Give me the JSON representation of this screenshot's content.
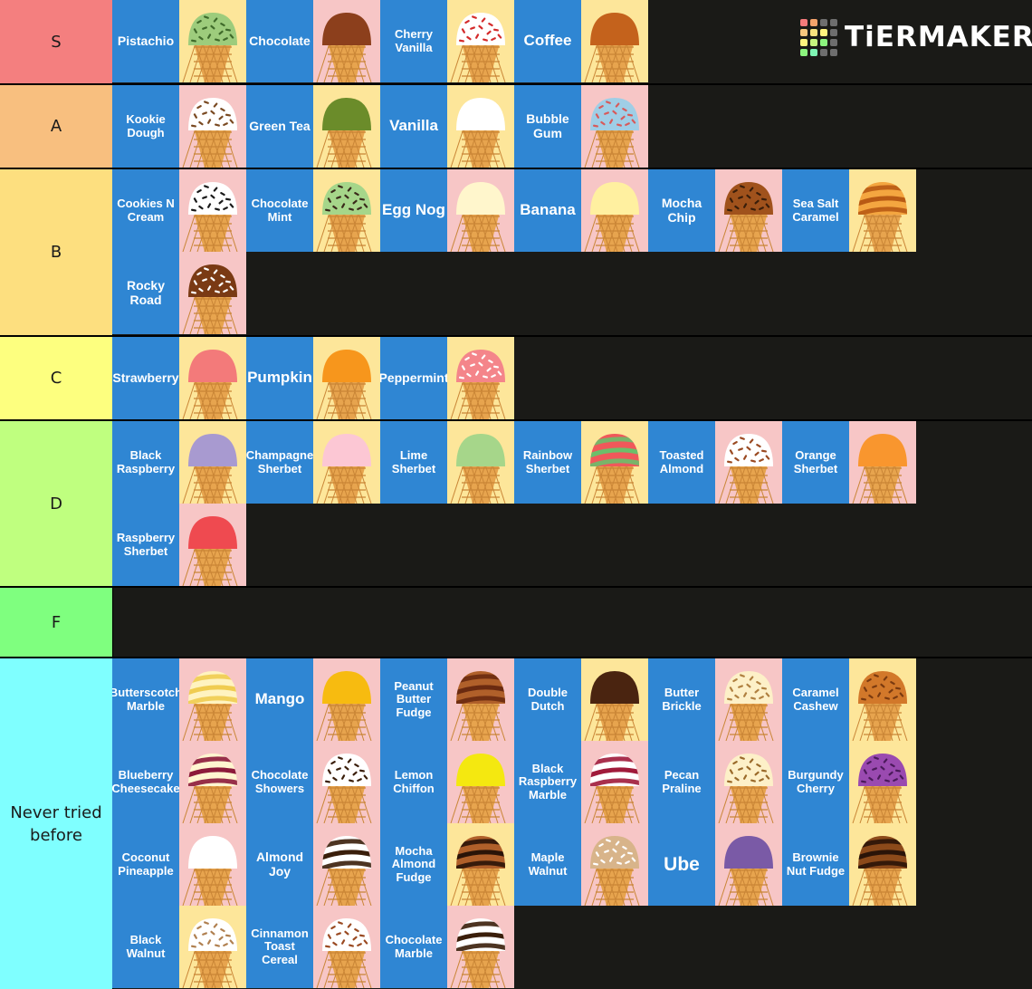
{
  "logo": {
    "text": "TiERMAKER",
    "colors": [
      "#f47b7b",
      "#f4a36b",
      "#6e6e6e",
      "#6e6e6e",
      "#f8c77e",
      "#f8e27e",
      "#fff47e",
      "#6e6e6e",
      "#fff47e",
      "#c6f47e",
      "#8cf47e",
      "#6e6e6e",
      "#8cf47e",
      "#7ef4b3",
      "#6e6e6e",
      "#6e6e6e"
    ]
  },
  "tiers": [
    {
      "label": "S",
      "color": "#f47f7f",
      "items": [
        {
          "name": "Pistachio",
          "bg": "#fde69a",
          "scoop": "#9dcc7c",
          "sprinkles": "#3f6a2a"
        },
        {
          "name": "Chocolate",
          "bg": "#f7c6c6",
          "scoop": "#8c3f1c"
        },
        {
          "name": "Cherry Vanilla",
          "bg": "#fde69a",
          "scoop": "#ffffff",
          "sprinkles": "#d42a2a"
        },
        {
          "name": "Coffee",
          "bg": "#fde69a",
          "scoop": "#c4621c"
        }
      ]
    },
    {
      "label": "A",
      "color": "#f8bf7f",
      "items": [
        {
          "name": "Kookie Dough",
          "bg": "#f7c6c6",
          "scoop": "#ffffff",
          "sprinkles": "#7a4a22"
        },
        {
          "name": "Green Tea",
          "bg": "#fde69a",
          "scoop": "#6b8c2a"
        },
        {
          "name": "Vanilla",
          "bg": "#fde69a",
          "scoop": "#ffffff"
        },
        {
          "name": "Bubble Gum",
          "bg": "#f7c6c6",
          "scoop": "#9fcee6",
          "sprinkles": "#d85a5a"
        }
      ]
    },
    {
      "label": "B",
      "color": "#fddf7f",
      "items": [
        {
          "name": "Cookies N Cream",
          "bg": "#f7c6c6",
          "scoop": "#ffffff",
          "sprinkles": "#1a1a1a"
        },
        {
          "name": "Chocolate Mint",
          "bg": "#fde69a",
          "scoop": "#a6d68a",
          "sprinkles": "#3a2a1a"
        },
        {
          "name": "Egg Nog",
          "bg": "#f7c6c6",
          "scoop": "#fff6cc"
        },
        {
          "name": "Banana",
          "bg": "#f7c6c6",
          "scoop": "#fff0a0"
        },
        {
          "name": "Mocha Chip",
          "bg": "#f7c6c6",
          "scoop": "#a0521c",
          "sprinkles": "#3a1e0a"
        },
        {
          "name": "Sea Salt Caramel",
          "bg": "#fde69a",
          "scoop": "#f4a640",
          "stripe": "#b85a14"
        },
        {
          "name": "Rocky Road",
          "bg": "#f7c6c6",
          "scoop": "#7a3a14",
          "sprinkles": "#ffffff"
        }
      ]
    },
    {
      "label": "C",
      "color": "#fdff7f",
      "items": [
        {
          "name": "Strawberry",
          "bg": "#fde69a",
          "scoop": "#f37a7a"
        },
        {
          "name": "Pumpkin",
          "bg": "#fde69a",
          "scoop": "#f7961c"
        },
        {
          "name": "Peppermint",
          "bg": "#fde69a",
          "scoop": "#f4858a",
          "sprinkles": "#ffffff"
        }
      ]
    },
    {
      "label": "D",
      "color": "#bfff7f",
      "items": [
        {
          "name": "Black Raspberry",
          "bg": "#fde69a",
          "scoop": "#a89ad0"
        },
        {
          "name": "Champagne Sherbet",
          "bg": "#fde69a",
          "scoop": "#fcc7d4"
        },
        {
          "name": "Lime Sherbet",
          "bg": "#fde69a",
          "scoop": "#a6d68a"
        },
        {
          "name": "Rainbow Sherbet",
          "bg": "#fde69a",
          "scoop": "#f0585a",
          "stripe": "#6cbf6a"
        },
        {
          "name": "Toasted Almond",
          "bg": "#f7c6c6",
          "scoop": "#ffffff",
          "sprinkles": "#9a4a22"
        },
        {
          "name": "Orange Sherbet",
          "bg": "#f7c6c6",
          "scoop": "#f9962e"
        },
        {
          "name": "Raspberry Sherbet",
          "bg": "#f7c6c6",
          "scoop": "#ef4a50"
        }
      ]
    },
    {
      "label": "F",
      "color": "#7fff7f",
      "items": []
    },
    {
      "label": "Never tried before",
      "color": "#7fffff",
      "items": [
        {
          "name": "Butterscotch Marble",
          "bg": "#f7c6c6",
          "scoop": "#fff3c0",
          "stripe": "#f0cc50"
        },
        {
          "name": "Mango",
          "bg": "#f7c6c6",
          "scoop": "#f7bb10"
        },
        {
          "name": "Peanut Butter Fudge",
          "bg": "#f7c6c6",
          "scoop": "#b0602a",
          "stripe": "#6a2a10"
        },
        {
          "name": "Double Dutch",
          "bg": "#fde69a",
          "scoop": "#4a2410"
        },
        {
          "name": "Butter Brickle",
          "bg": "#f7c6c6",
          "scoop": "#fdf0c8",
          "sprinkles": "#b08040"
        },
        {
          "name": "Caramel Cashew",
          "bg": "#fde69a",
          "scoop": "#d2782a",
          "sprinkles": "#7a3a10"
        },
        {
          "name": "Blueberry Cheesecake",
          "bg": "#f7c6c6",
          "scoop": "#fff6d0",
          "stripe": "#8c1a3a"
        },
        {
          "name": "Chocolate Showers",
          "bg": "#f7c6c6",
          "scoop": "#ffffff",
          "sprinkles": "#3a1e0a"
        },
        {
          "name": "Lemon Chiffon",
          "bg": "#f7c6c6",
          "scoop": "#f4e810"
        },
        {
          "name": "Black Raspberry Marble",
          "bg": "#f7c6c6",
          "scoop": "#ffffff",
          "stripe": "#a01a3a"
        },
        {
          "name": "Pecan Praline",
          "bg": "#f7c6c6",
          "scoop": "#fdf0c8",
          "sprinkles": "#9a6a2a"
        },
        {
          "name": "Burgundy Cherry",
          "bg": "#fde69a",
          "scoop": "#9a4ab0",
          "sprinkles": "#4a1a5a"
        },
        {
          "name": "Coconut Pineapple",
          "bg": "#f7c6c6",
          "scoop": "#ffffff"
        },
        {
          "name": "Almond Joy",
          "bg": "#f7c6c6",
          "scoop": "#ffffff",
          "stripe": "#3a1e0a"
        },
        {
          "name": "Mocha Almond Fudge",
          "bg": "#fde69a",
          "scoop": "#b0602a",
          "stripe": "#2a1408"
        },
        {
          "name": "Maple Walnut",
          "bg": "#f7c6c6",
          "scoop": "#d8b48a",
          "sprinkles": "#ffffff"
        },
        {
          "name": "Ube",
          "bg": "#f7c6c6",
          "scoop": "#7a5aa6"
        },
        {
          "name": "Brownie Nut Fudge",
          "bg": "#fde69a",
          "scoop": "#8c4a1a",
          "stripe": "#2a1408"
        },
        {
          "name": "Black Walnut",
          "bg": "#fde69a",
          "scoop": "#ffffff",
          "sprinkles": "#b08050"
        },
        {
          "name": "Cinnamon Toast Cereal",
          "bg": "#f7c6c6",
          "scoop": "#ffffff",
          "sprinkles": "#9a4a22"
        },
        {
          "name": "Chocolate Marble",
          "bg": "#f7c6c6",
          "scoop": "#ffffff",
          "stripe": "#3a1e0a"
        }
      ]
    }
  ]
}
